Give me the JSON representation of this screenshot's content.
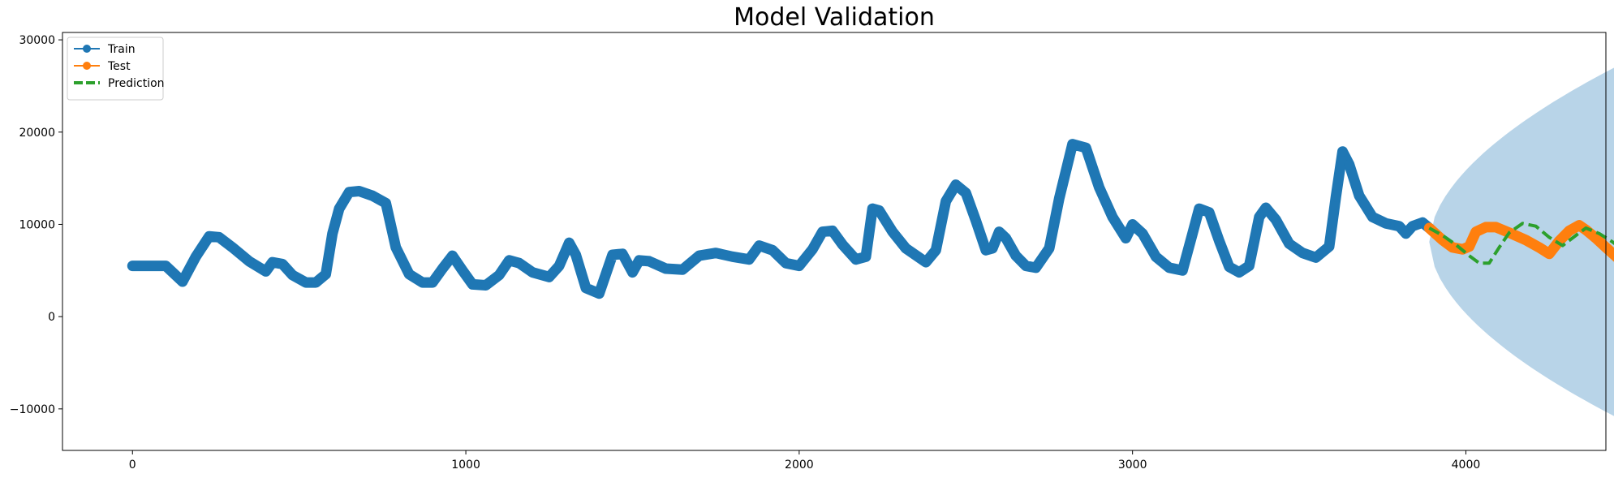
{
  "chart_data": {
    "type": "line",
    "title": "Model Validation",
    "xlabel": "",
    "ylabel": "",
    "xlim": [
      -210,
      4420
    ],
    "ylim": [
      -14500,
      30800
    ],
    "x_ticks": [
      0,
      1000,
      2000,
      3000,
      4000
    ],
    "y_ticks": [
      -10000,
      0,
      10000,
      20000,
      30000
    ],
    "grid": false,
    "legend_position": "top-left",
    "series": [
      {
        "name": "Train",
        "color": "#1f77b4",
        "style": "line-marker",
        "points": [
          [
            0,
            5500
          ],
          [
            100,
            5500
          ],
          [
            150,
            3800
          ],
          [
            190,
            6500
          ],
          [
            230,
            8700
          ],
          [
            260,
            8600
          ],
          [
            300,
            7500
          ],
          [
            350,
            6000
          ],
          [
            400,
            4900
          ],
          [
            420,
            5900
          ],
          [
            450,
            5700
          ],
          [
            480,
            4500
          ],
          [
            520,
            3700
          ],
          [
            550,
            3700
          ],
          [
            580,
            4600
          ],
          [
            600,
            9000
          ],
          [
            620,
            11700
          ],
          [
            650,
            13500
          ],
          [
            680,
            13600
          ],
          [
            720,
            13100
          ],
          [
            760,
            12300
          ],
          [
            790,
            7500
          ],
          [
            830,
            4600
          ],
          [
            870,
            3700
          ],
          [
            900,
            3700
          ],
          [
            930,
            5200
          ],
          [
            960,
            6600
          ],
          [
            990,
            5000
          ],
          [
            1020,
            3500
          ],
          [
            1060,
            3400
          ],
          [
            1100,
            4500
          ],
          [
            1130,
            6100
          ],
          [
            1160,
            5800
          ],
          [
            1200,
            4800
          ],
          [
            1250,
            4300
          ],
          [
            1280,
            5500
          ],
          [
            1310,
            8000
          ],
          [
            1330,
            6700
          ],
          [
            1360,
            3100
          ],
          [
            1400,
            2500
          ],
          [
            1440,
            6700
          ],
          [
            1470,
            6800
          ],
          [
            1500,
            4800
          ],
          [
            1520,
            6100
          ],
          [
            1550,
            6000
          ],
          [
            1600,
            5200
          ],
          [
            1650,
            5100
          ],
          [
            1700,
            6600
          ],
          [
            1750,
            6900
          ],
          [
            1800,
            6500
          ],
          [
            1850,
            6200
          ],
          [
            1880,
            7700
          ],
          [
            1920,
            7200
          ],
          [
            1960,
            5800
          ],
          [
            2000,
            5500
          ],
          [
            2040,
            7300
          ],
          [
            2070,
            9200
          ],
          [
            2100,
            9300
          ],
          [
            2130,
            7800
          ],
          [
            2170,
            6200
          ],
          [
            2200,
            6500
          ],
          [
            2220,
            11700
          ],
          [
            2240,
            11500
          ],
          [
            2280,
            9200
          ],
          [
            2320,
            7400
          ],
          [
            2360,
            6400
          ],
          [
            2380,
            5900
          ],
          [
            2410,
            7200
          ],
          [
            2440,
            12500
          ],
          [
            2470,
            14300
          ],
          [
            2500,
            13400
          ],
          [
            2530,
            10400
          ],
          [
            2560,
            7200
          ],
          [
            2580,
            7400
          ],
          [
            2600,
            9200
          ],
          [
            2620,
            8500
          ],
          [
            2650,
            6600
          ],
          [
            2680,
            5500
          ],
          [
            2710,
            5300
          ],
          [
            2750,
            7400
          ],
          [
            2780,
            12800
          ],
          [
            2820,
            18700
          ],
          [
            2860,
            18300
          ],
          [
            2900,
            14000
          ],
          [
            2940,
            10800
          ],
          [
            2980,
            8500
          ],
          [
            3000,
            10000
          ],
          [
            3030,
            9000
          ],
          [
            3070,
            6500
          ],
          [
            3110,
            5300
          ],
          [
            3150,
            5000
          ],
          [
            3180,
            9000
          ],
          [
            3200,
            11700
          ],
          [
            3230,
            11300
          ],
          [
            3260,
            8200
          ],
          [
            3290,
            5400
          ],
          [
            3320,
            4800
          ],
          [
            3350,
            5500
          ],
          [
            3380,
            10800
          ],
          [
            3400,
            11800
          ],
          [
            3430,
            10500
          ],
          [
            3470,
            7900
          ],
          [
            3510,
            6900
          ],
          [
            3550,
            6400
          ],
          [
            3590,
            7600
          ],
          [
            3610,
            13000
          ],
          [
            3630,
            17900
          ],
          [
            3650,
            16500
          ],
          [
            3680,
            13100
          ],
          [
            3720,
            10800
          ],
          [
            3760,
            10100
          ],
          [
            3800,
            9800
          ],
          [
            3820,
            9000
          ],
          [
            3840,
            9800
          ],
          [
            3870,
            10200
          ],
          [
            3890,
            9600
          ]
        ]
      },
      {
        "name": "Test",
        "color": "#ff7f0e",
        "style": "line-marker",
        "points": [
          [
            3890,
            9600
          ],
          [
            3930,
            8300
          ],
          [
            3960,
            7500
          ],
          [
            3990,
            7300
          ],
          [
            4010,
            7600
          ],
          [
            4030,
            9200
          ],
          [
            4060,
            9700
          ],
          [
            4090,
            9700
          ],
          [
            4130,
            9100
          ],
          [
            4180,
            8300
          ],
          [
            4220,
            7500
          ],
          [
            4250,
            6800
          ],
          [
            4280,
            8200
          ],
          [
            4310,
            9300
          ],
          [
            4340,
            9900
          ],
          [
            4360,
            9400
          ],
          [
            4390,
            8500
          ],
          [
            4420,
            7500
          ],
          [
            4460,
            6200
          ],
          [
            4490,
            5800
          ],
          [
            4510,
            6500
          ],
          [
            4530,
            8500
          ],
          [
            4540,
            8300
          ]
        ]
      },
      {
        "name": "Prediction",
        "color": "#2ca02c",
        "style": "dashed",
        "points": [
          [
            3890,
            9600
          ],
          [
            3930,
            8800
          ],
          [
            3970,
            7800
          ],
          [
            4010,
            6600
          ],
          [
            4040,
            5800
          ],
          [
            4070,
            5800
          ],
          [
            4100,
            7500
          ],
          [
            4130,
            9100
          ],
          [
            4170,
            10100
          ],
          [
            4210,
            9800
          ],
          [
            4250,
            8600
          ],
          [
            4290,
            7700
          ],
          [
            4330,
            8800
          ],
          [
            4360,
            9600
          ],
          [
            4400,
            9000
          ],
          [
            4440,
            8100
          ],
          [
            4480,
            7000
          ],
          [
            4510,
            6200
          ],
          [
            4540,
            5700
          ]
        ]
      }
    ],
    "confidence_band": {
      "color": "#b8d4e8",
      "x_start": 3890,
      "x_end": 4540,
      "center": 8100,
      "upper_end": 28700,
      "lower_end": -12500
    }
  }
}
